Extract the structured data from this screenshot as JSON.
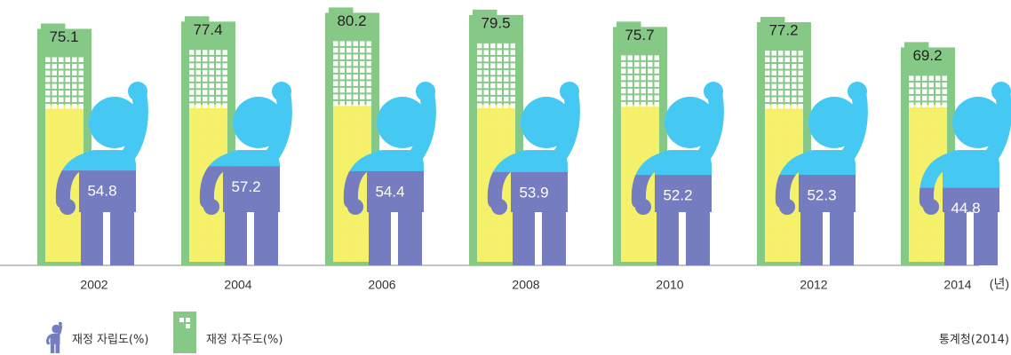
{
  "chart_data": {
    "type": "bar",
    "categories": [
      "2002",
      "2004",
      "2006",
      "2008",
      "2010",
      "2012",
      "2014"
    ],
    "x_unit": "(년)",
    "series": [
      {
        "name": "재정 자립도(%)",
        "color": "#767cc0",
        "figure_color": "#45c8f2",
        "values": [
          54.8,
          57.2,
          54.4,
          53.9,
          52.2,
          52.3,
          44.8
        ]
      },
      {
        "name": "재정 자주도(%)",
        "color": "#86c987",
        "window_color": "#f4f06a",
        "values": [
          75.1,
          77.4,
          80.2,
          79.5,
          75.7,
          77.2,
          69.2
        ]
      }
    ],
    "ylim": [
      0,
      82
    ],
    "source": "통계청(2014)"
  }
}
